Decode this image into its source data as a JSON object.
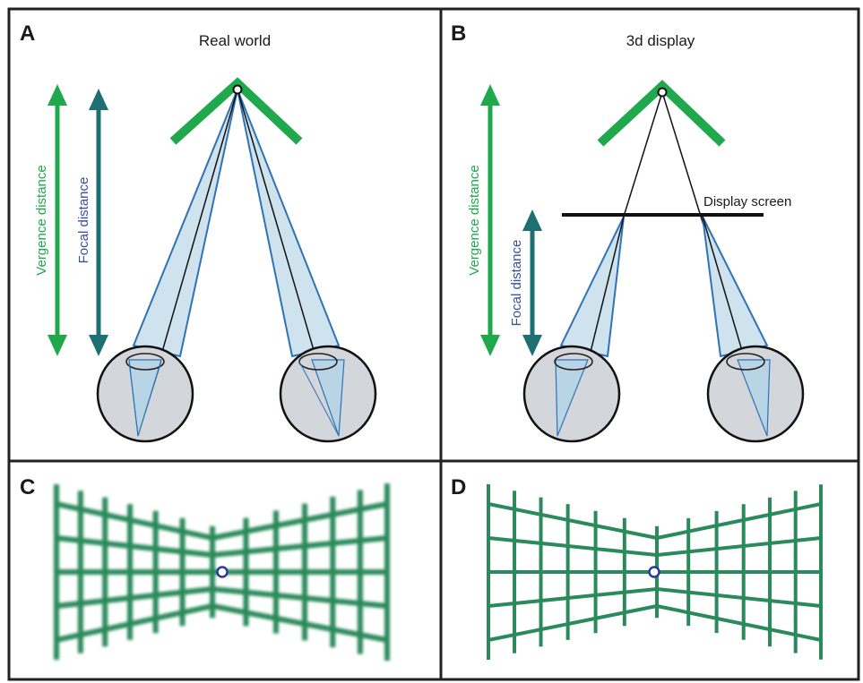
{
  "panels": {
    "a": {
      "letter": "A",
      "title": "Real world"
    },
    "b": {
      "letter": "B",
      "title": "3d display"
    },
    "c": {
      "letter": "C"
    },
    "d": {
      "letter": "D"
    }
  },
  "labels": {
    "vergence": "Vergence distance",
    "focal": "Focal distance",
    "display_screen": "Display screen"
  },
  "colors": {
    "vergence_arrow": "#1fa84c",
    "focal_arrow": "#1d6f72",
    "focal_text": "#3a4ea0",
    "chevron": "#1fa84c",
    "cone_fill": "#cfe3ee",
    "cone_edge": "#2f73b5",
    "eye_fill": "#d3d6da",
    "grid": "#2a8a5c",
    "fixation": "#2b3b9c"
  }
}
